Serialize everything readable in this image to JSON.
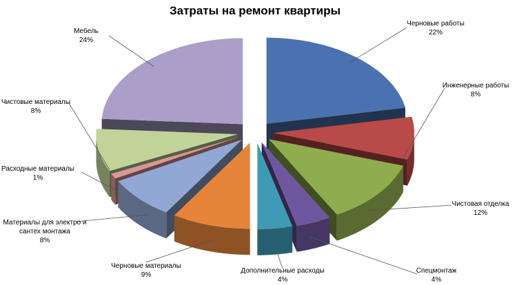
{
  "chart_data": {
    "type": "pie",
    "title": "Затраты на ремонт квартиры",
    "categories": [
      "Черновые работы",
      "Инженерные работы",
      "Чистовая отделка",
      "Спецмонтаж",
      "Дополнительные расходы",
      "Черновые материалы",
      "Материалы для электро и сантех монтажа",
      "Расходные материалы",
      "Чистовые материалы",
      "Мебель"
    ],
    "values": [
      22,
      8,
      12,
      4,
      4,
      9,
      8,
      1,
      8,
      24
    ],
    "value_labels": [
      "22%",
      "8%",
      "12%",
      "4%",
      "4%",
      "9%",
      "8%",
      "1%",
      "8%",
      "24%"
    ],
    "colors": [
      "#4a72b0",
      "#b84a47",
      "#8fad4e",
      "#6f57a0",
      "#3f9bb5",
      "#e6843a",
      "#91a8d4",
      "#d99795",
      "#c0d49a",
      "#ab9ec8"
    ]
  }
}
